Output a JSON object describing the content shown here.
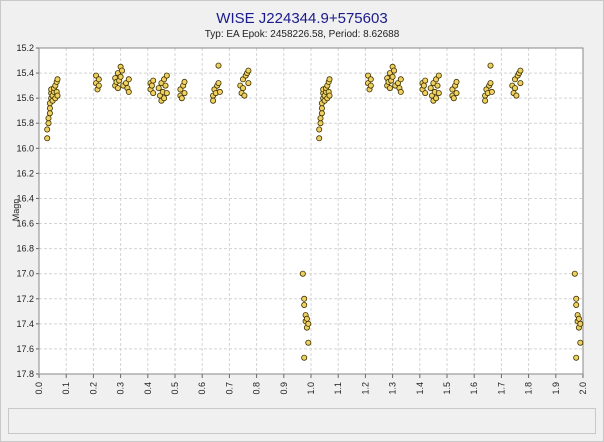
{
  "chart_data": {
    "type": "scatter",
    "title": "WISE J224344.9+575603",
    "subtitle": "Typ: EA Epok: 2458226.58, Period: 8.62688",
    "xlabel": "",
    "ylabel": "Magn",
    "xlim": [
      0.0,
      2.0
    ],
    "ylim": [
      15.2,
      17.8
    ],
    "y_inverted": true,
    "x_ticks": [
      "0.0",
      "0.1",
      "0.2",
      "0.3",
      "0.4",
      "0.5",
      "0.6",
      "0.7",
      "0.8",
      "0.9",
      "1.0",
      "1.1",
      "1.2",
      "1.3",
      "1.4",
      "1.5",
      "1.6",
      "1.7",
      "1.8",
      "1.9",
      "2.0"
    ],
    "y_ticks": [
      "15.2",
      "15.4",
      "15.6",
      "15.8",
      "16.0",
      "16.2",
      "16.4",
      "16.6",
      "16.8",
      "17.0",
      "17.2",
      "17.4",
      "17.6",
      "17.8"
    ],
    "grid": true,
    "marker_fill": "#f0d060",
    "marker_edge": "#3a3000",
    "points": [
      [
        0.03,
        15.92
      ],
      [
        0.03,
        15.85
      ],
      [
        0.035,
        15.8
      ],
      [
        0.035,
        15.76
      ],
      [
        0.04,
        15.72
      ],
      [
        0.04,
        15.68
      ],
      [
        0.04,
        15.64
      ],
      [
        0.045,
        15.6
      ],
      [
        0.045,
        15.56
      ],
      [
        0.045,
        15.53
      ],
      [
        0.05,
        15.58
      ],
      [
        0.05,
        15.62
      ],
      [
        0.055,
        15.55
      ],
      [
        0.055,
        15.52
      ],
      [
        0.06,
        15.6
      ],
      [
        0.06,
        15.5
      ],
      [
        0.065,
        15.47
      ],
      [
        0.065,
        15.55
      ],
      [
        0.068,
        15.45
      ],
      [
        0.068,
        15.58
      ],
      [
        0.21,
        15.42
      ],
      [
        0.21,
        15.48
      ],
      [
        0.215,
        15.53
      ],
      [
        0.22,
        15.45
      ],
      [
        0.22,
        15.5
      ],
      [
        0.28,
        15.44
      ],
      [
        0.28,
        15.5
      ],
      [
        0.285,
        15.47
      ],
      [
        0.29,
        15.52
      ],
      [
        0.29,
        15.4
      ],
      [
        0.295,
        15.46
      ],
      [
        0.3,
        15.35
      ],
      [
        0.3,
        15.43
      ],
      [
        0.305,
        15.38
      ],
      [
        0.31,
        15.5
      ],
      [
        0.32,
        15.48
      ],
      [
        0.325,
        15.52
      ],
      [
        0.33,
        15.45
      ],
      [
        0.33,
        15.55
      ],
      [
        0.41,
        15.48
      ],
      [
        0.41,
        15.53
      ],
      [
        0.415,
        15.5
      ],
      [
        0.42,
        15.56
      ],
      [
        0.42,
        15.46
      ],
      [
        0.44,
        15.52
      ],
      [
        0.445,
        15.58
      ],
      [
        0.45,
        15.48
      ],
      [
        0.45,
        15.62
      ],
      [
        0.455,
        15.55
      ],
      [
        0.46,
        15.6
      ],
      [
        0.46,
        15.45
      ],
      [
        0.465,
        15.5
      ],
      [
        0.47,
        15.42
      ],
      [
        0.47,
        15.56
      ],
      [
        0.52,
        15.53
      ],
      [
        0.52,
        15.58
      ],
      [
        0.525,
        15.6
      ],
      [
        0.53,
        15.5
      ],
      [
        0.535,
        15.47
      ],
      [
        0.535,
        15.56
      ],
      [
        0.64,
        15.58
      ],
      [
        0.64,
        15.62
      ],
      [
        0.645,
        15.53
      ],
      [
        0.65,
        15.56
      ],
      [
        0.655,
        15.5
      ],
      [
        0.66,
        15.34
      ],
      [
        0.66,
        15.48
      ],
      [
        0.665,
        15.55
      ],
      [
        0.74,
        15.5
      ],
      [
        0.745,
        15.56
      ],
      [
        0.75,
        15.52
      ],
      [
        0.75,
        15.45
      ],
      [
        0.755,
        15.58
      ],
      [
        0.76,
        15.42
      ],
      [
        0.765,
        15.4
      ],
      [
        0.77,
        15.38
      ],
      [
        0.77,
        15.48
      ],
      [
        0.97,
        17.0
      ],
      [
        0.975,
        17.2
      ],
      [
        0.975,
        17.25
      ],
      [
        0.98,
        17.33
      ],
      [
        0.98,
        17.38
      ],
      [
        0.985,
        17.43
      ],
      [
        0.985,
        17.36
      ],
      [
        0.99,
        17.55
      ],
      [
        0.99,
        17.4
      ],
      [
        0.975,
        17.67
      ],
      [
        1.03,
        15.92
      ],
      [
        1.03,
        15.85
      ],
      [
        1.035,
        15.8
      ],
      [
        1.035,
        15.76
      ],
      [
        1.04,
        15.72
      ],
      [
        1.04,
        15.68
      ],
      [
        1.04,
        15.64
      ],
      [
        1.045,
        15.6
      ],
      [
        1.045,
        15.56
      ],
      [
        1.045,
        15.53
      ],
      [
        1.05,
        15.58
      ],
      [
        1.05,
        15.62
      ],
      [
        1.055,
        15.55
      ],
      [
        1.055,
        15.52
      ],
      [
        1.06,
        15.6
      ],
      [
        1.06,
        15.5
      ],
      [
        1.065,
        15.47
      ],
      [
        1.065,
        15.55
      ],
      [
        1.068,
        15.45
      ],
      [
        1.068,
        15.58
      ],
      [
        1.21,
        15.42
      ],
      [
        1.21,
        15.48
      ],
      [
        1.215,
        15.53
      ],
      [
        1.22,
        15.45
      ],
      [
        1.22,
        15.5
      ],
      [
        1.28,
        15.44
      ],
      [
        1.28,
        15.5
      ],
      [
        1.285,
        15.47
      ],
      [
        1.29,
        15.52
      ],
      [
        1.29,
        15.4
      ],
      [
        1.295,
        15.46
      ],
      [
        1.3,
        15.35
      ],
      [
        1.3,
        15.43
      ],
      [
        1.305,
        15.38
      ],
      [
        1.31,
        15.5
      ],
      [
        1.32,
        15.48
      ],
      [
        1.325,
        15.52
      ],
      [
        1.33,
        15.45
      ],
      [
        1.33,
        15.55
      ],
      [
        1.41,
        15.48
      ],
      [
        1.41,
        15.53
      ],
      [
        1.415,
        15.5
      ],
      [
        1.42,
        15.56
      ],
      [
        1.42,
        15.46
      ],
      [
        1.44,
        15.52
      ],
      [
        1.445,
        15.58
      ],
      [
        1.45,
        15.48
      ],
      [
        1.45,
        15.62
      ],
      [
        1.455,
        15.55
      ],
      [
        1.46,
        15.6
      ],
      [
        1.46,
        15.45
      ],
      [
        1.465,
        15.5
      ],
      [
        1.47,
        15.42
      ],
      [
        1.47,
        15.56
      ],
      [
        1.52,
        15.53
      ],
      [
        1.52,
        15.58
      ],
      [
        1.525,
        15.6
      ],
      [
        1.53,
        15.5
      ],
      [
        1.535,
        15.47
      ],
      [
        1.535,
        15.56
      ],
      [
        1.64,
        15.58
      ],
      [
        1.64,
        15.62
      ],
      [
        1.645,
        15.53
      ],
      [
        1.65,
        15.56
      ],
      [
        1.655,
        15.5
      ],
      [
        1.66,
        15.34
      ],
      [
        1.66,
        15.48
      ],
      [
        1.665,
        15.55
      ],
      [
        1.74,
        15.5
      ],
      [
        1.745,
        15.56
      ],
      [
        1.75,
        15.52
      ],
      [
        1.75,
        15.45
      ],
      [
        1.755,
        15.58
      ],
      [
        1.76,
        15.42
      ],
      [
        1.765,
        15.4
      ],
      [
        1.77,
        15.38
      ],
      [
        1.77,
        15.48
      ],
      [
        1.97,
        17.0
      ],
      [
        1.975,
        17.2
      ],
      [
        1.975,
        17.25
      ],
      [
        1.98,
        17.33
      ],
      [
        1.98,
        17.38
      ],
      [
        1.985,
        17.43
      ],
      [
        1.985,
        17.36
      ],
      [
        1.99,
        17.55
      ],
      [
        1.99,
        17.4
      ],
      [
        1.975,
        17.67
      ]
    ]
  }
}
